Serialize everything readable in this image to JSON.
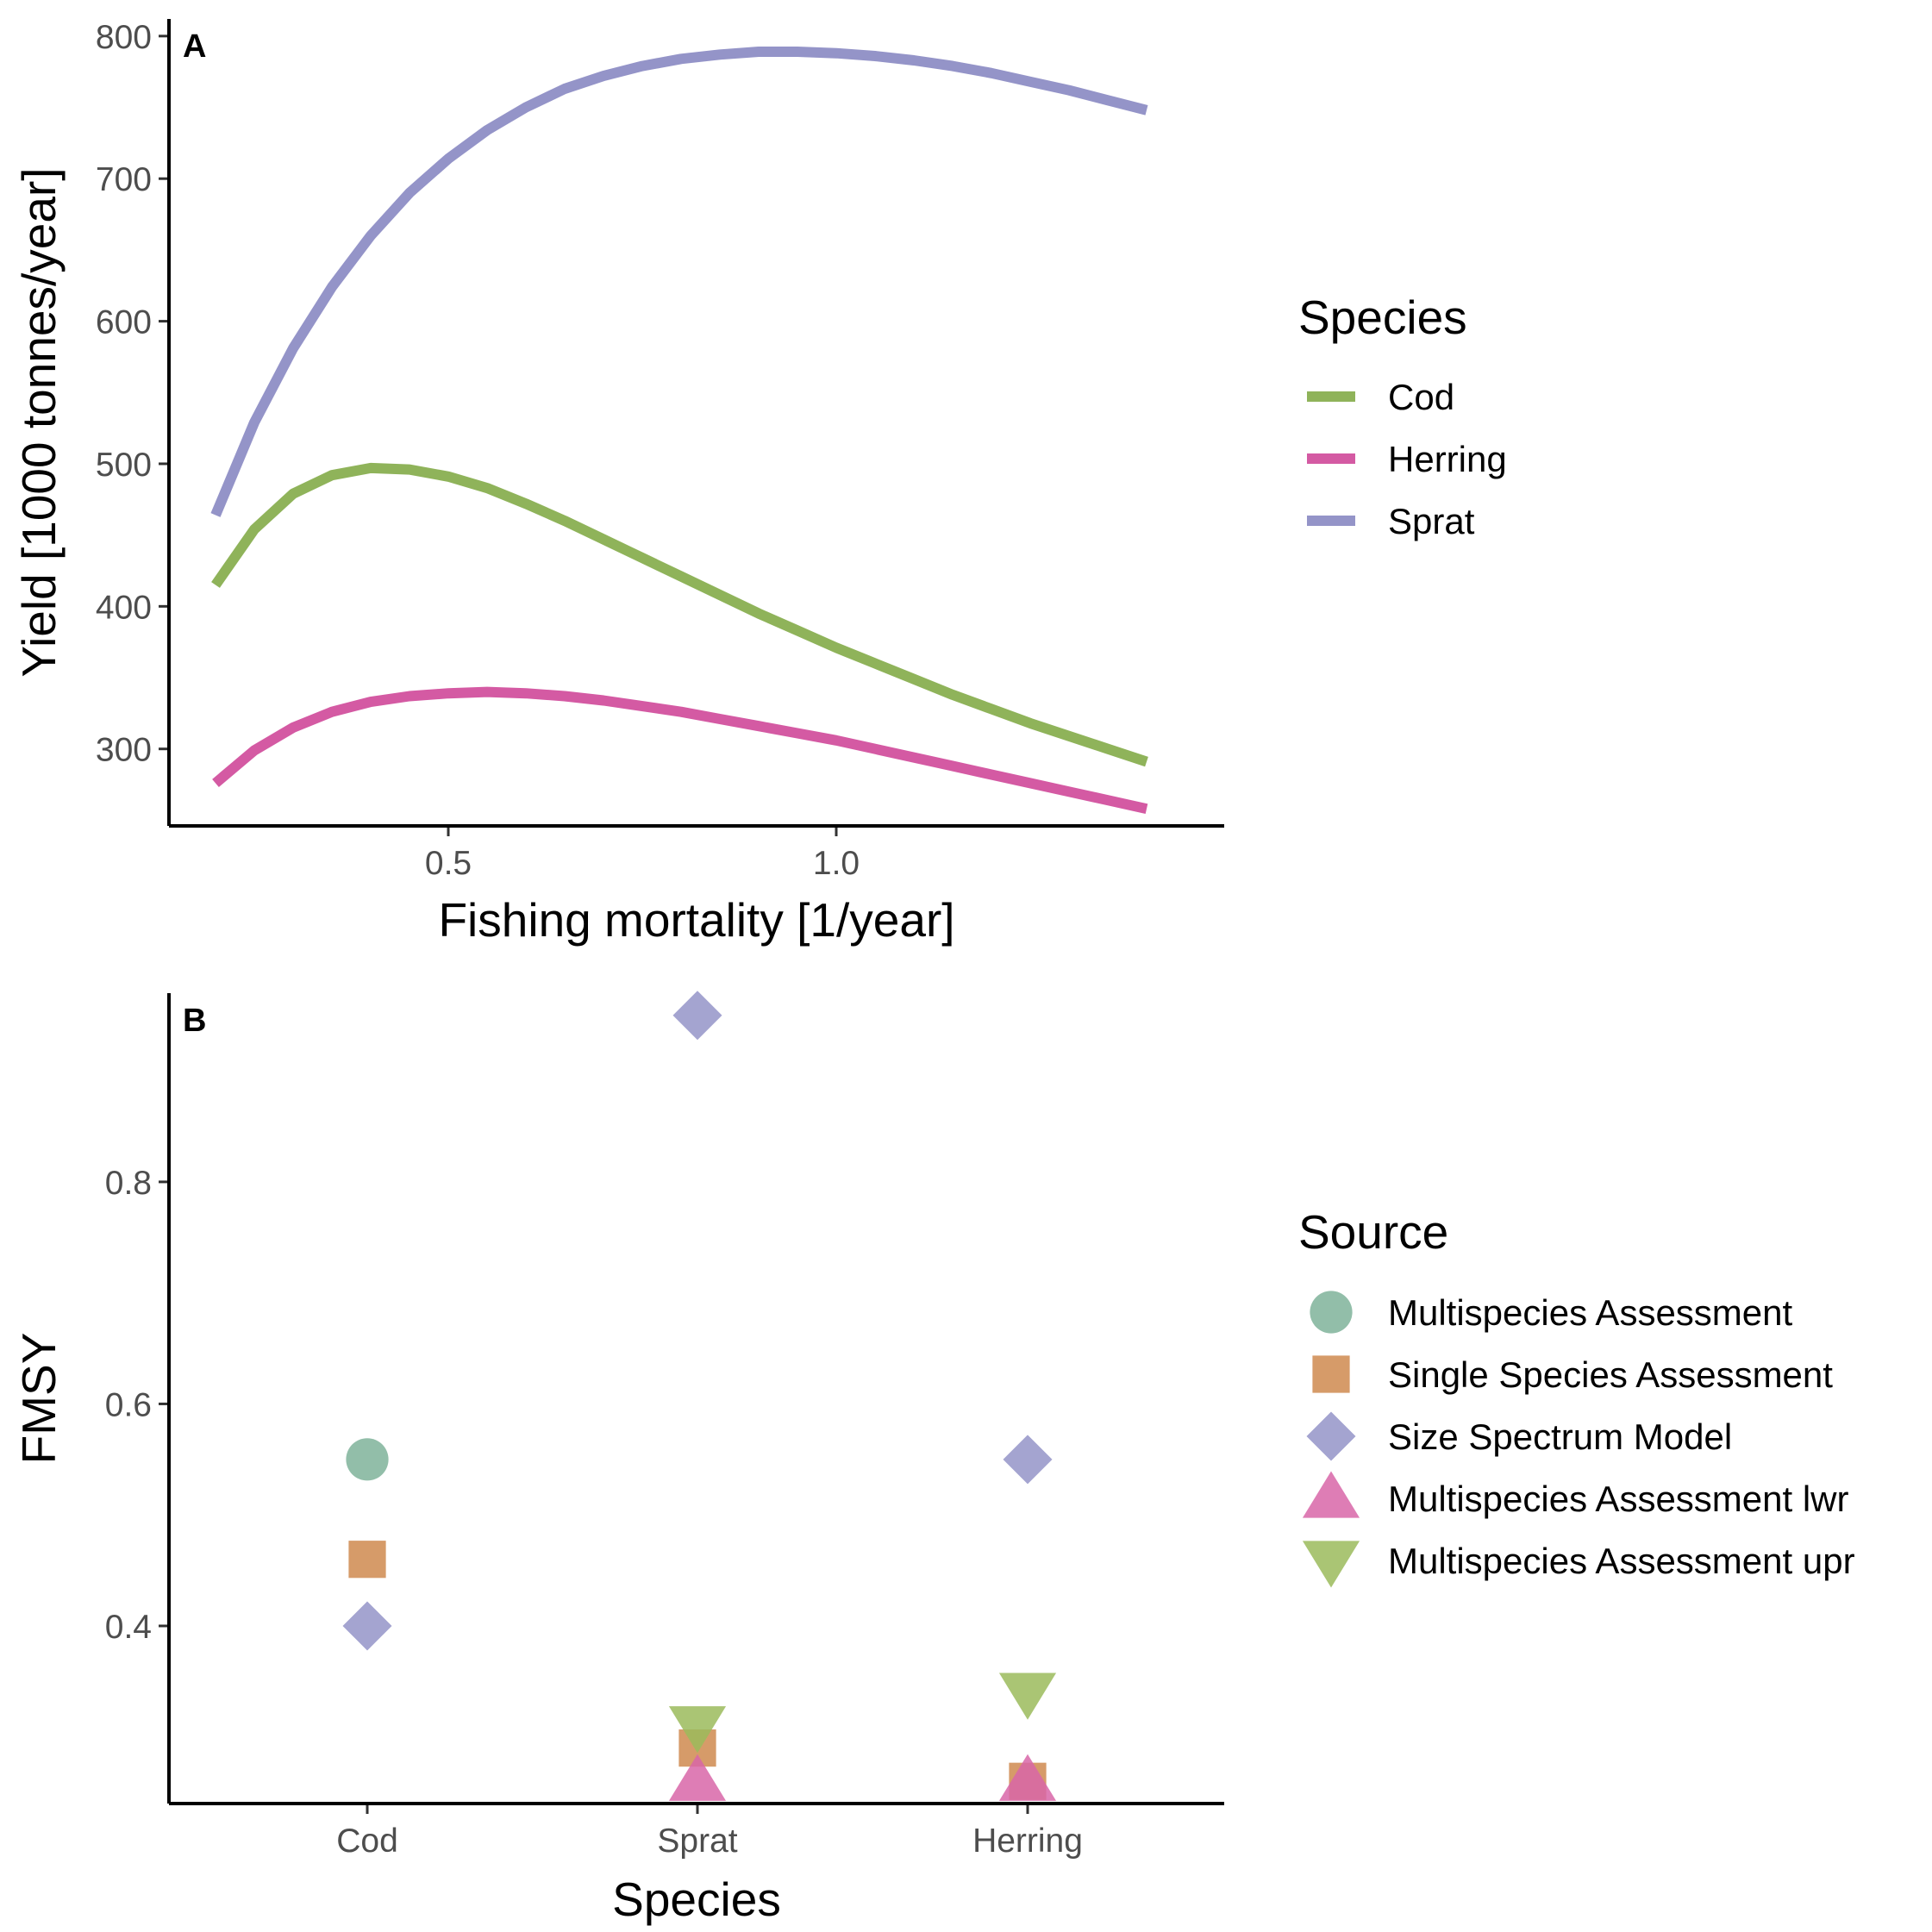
{
  "chart_data": [
    {
      "type": "line",
      "panel_tag": "A",
      "xlabel": "Fishing mortality [1/year]",
      "ylabel": "Yield [1000 tonnes/year]",
      "xlim": [
        0.14,
        1.5
      ],
      "ylim": [
        246,
        812
      ],
      "x_ticks": [
        0.5,
        1.0
      ],
      "x_tick_labels": [
        "0.5",
        "1.0"
      ],
      "y_ticks": [
        300,
        400,
        500,
        600,
        700,
        800
      ],
      "y_tick_labels": [
        "300",
        "400",
        "500",
        "600",
        "700",
        "800"
      ],
      "grid": false,
      "legend": {
        "title": "Species",
        "placement": "right"
      },
      "x": [
        0.2,
        0.25,
        0.3,
        0.35,
        0.4,
        0.45,
        0.5,
        0.55,
        0.6,
        0.65,
        0.7,
        0.75,
        0.8,
        0.85,
        0.9,
        0.95,
        1.0,
        1.05,
        1.1,
        1.15,
        1.2,
        1.25,
        1.3,
        1.35,
        1.4
      ],
      "series": [
        {
          "name": "Cod",
          "color": "#8fb35a",
          "values": [
            415,
            454,
            479,
            492,
            497,
            496,
            491,
            483,
            472,
            460,
            447,
            434,
            421,
            408,
            395,
            383,
            371,
            360,
            349,
            338,
            328,
            318,
            309,
            300,
            291
          ]
        },
        {
          "name": "Herring",
          "color": "#d45aa3",
          "values": [
            276,
            299,
            315,
            326,
            333,
            337,
            339,
            340,
            339,
            337,
            334,
            330,
            326,
            321,
            316,
            311,
            306,
            300,
            294,
            288,
            282,
            276,
            270,
            264,
            258
          ]
        },
        {
          "name": "Sprat",
          "color": "#9494c8",
          "values": [
            464,
            529,
            581,
            624,
            660,
            690,
            714,
            734,
            750,
            763,
            772,
            779,
            784,
            787,
            789,
            789,
            788,
            786,
            783,
            779,
            774,
            768,
            762,
            755,
            748
          ]
        }
      ]
    },
    {
      "type": "scatter",
      "panel_tag": "B",
      "xlabel": "Species",
      "ylabel": "FMSY",
      "categories": [
        "Cod",
        "Sprat",
        "Herring"
      ],
      "ylim": [
        0.24,
        0.97
      ],
      "y_ticks": [
        0.4,
        0.6,
        0.8
      ],
      "y_tick_labels": [
        "0.4",
        "0.6",
        "0.8"
      ],
      "grid": false,
      "legend": {
        "title": "Source",
        "placement": "right"
      },
      "series": [
        {
          "name": "Multispecies Assessment",
          "shape": "circle",
          "color": "#7fb39a",
          "values": [
            0.55,
            null,
            null
          ]
        },
        {
          "name": "Single Species Assessment",
          "shape": "square",
          "color": "#cf8a4f",
          "values": [
            0.46,
            0.29,
            0.26
          ]
        },
        {
          "name": "Size Spectrum Model",
          "shape": "diamond",
          "color": "#9494c8",
          "values": [
            0.4,
            0.95,
            0.55
          ]
        },
        {
          "name": "Multispecies Assessment lwr",
          "shape": "triangle-up",
          "color": "#d866a8",
          "values": [
            null,
            0.26,
            0.26
          ]
        },
        {
          "name": "Multispecies Assessment upr",
          "shape": "triangle-down",
          "color": "#9bbb5c",
          "values": [
            null,
            0.31,
            0.34
          ]
        }
      ]
    }
  ]
}
